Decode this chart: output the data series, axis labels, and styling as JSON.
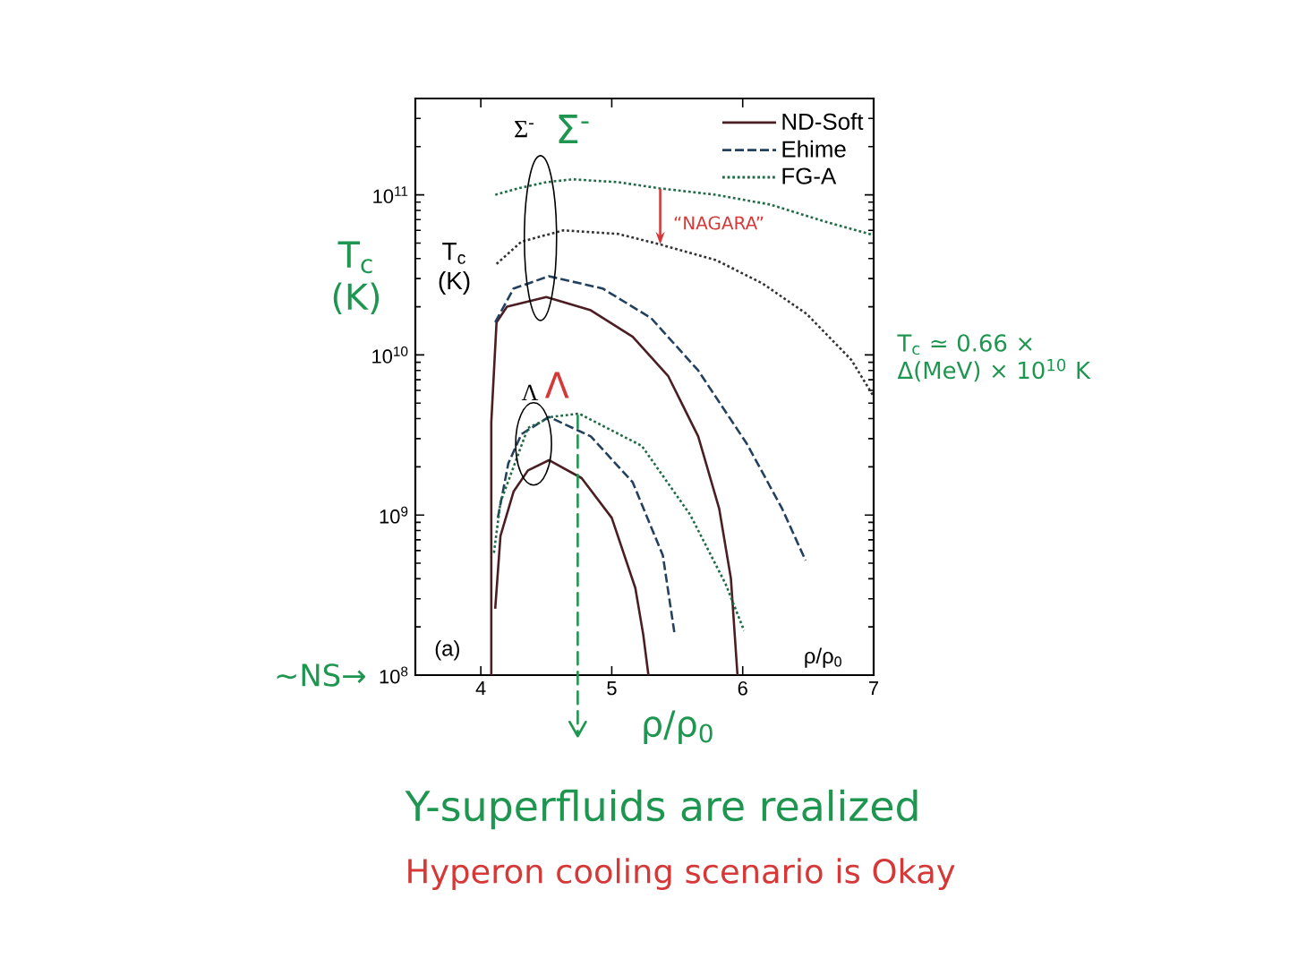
{
  "chart_data": {
    "type": "line",
    "xlabel": "ρ/ρ$_{0}$",
    "ylabel": "T$_{c}$ (K)",
    "xlim": [
      3.5,
      7
    ],
    "ylim": [
      100000000.0,
      400000000000.0
    ],
    "xticks": [
      4,
      5,
      6,
      7
    ],
    "yticks": [
      {
        "value": 100000000.0,
        "label": "10$^{8}$"
      },
      {
        "value": 1000000000.0,
        "label": "10$^{9}$"
      },
      {
        "value": 10000000000.0,
        "label": "10$^{10}$"
      },
      {
        "value": 100000000000.0,
        "label": "10$^{11}$"
      }
    ],
    "log": "y",
    "legend": "top right",
    "series": [
      {
        "name": "ND-Soft",
        "color": "#4a1e22",
        "line_style": "solid",
        "x": [
          4.08,
          4.08,
          4.12,
          4.2,
          4.5,
          4.84,
          5.16,
          5.43,
          5.66,
          5.82,
          5.91,
          5.96
        ],
        "values": [
          100000000.0,
          3800000000.0,
          16000000000.0,
          20000000000.0,
          23000000000.0,
          19000000000.0,
          13000000000.0,
          7400000000.0,
          3100000000.0,
          1100000000.0,
          400000000.0,
          100000000.0
        ]
      },
      {
        "name": "Ehime",
        "color": "#23405e",
        "line_style": "dashed",
        "x": [
          4.11,
          4.25,
          4.52,
          4.93,
          5.3,
          5.66,
          6.03,
          6.3,
          6.48
        ],
        "values": [
          16000000000.0,
          26000000000.0,
          31000000000.0,
          26000000000.0,
          17000000000.0,
          8000000000.0,
          2800000000.0,
          1100000000.0,
          520000000.0
        ]
      },
      {
        "name": "FG-A",
        "color": "#1f6b45",
        "line_style": "dotted",
        "x": [
          4.11,
          4.29,
          4.5,
          4.7,
          5.05,
          5.36,
          5.8,
          6.21,
          6.63,
          7.0
        ],
        "values": [
          100000000000.0,
          110000000000.0,
          120000000000.0,
          125000000000.0,
          120000000000.0,
          110000000000.0,
          100000000000.0,
          87000000000.0,
          68000000000.0,
          56000000000.0
        ]
      },
      {
        "color": "#333333",
        "line_style": "dotted",
        "x": [
          4.12,
          4.31,
          4.63,
          5.05,
          5.37,
          5.8,
          6.15,
          6.49,
          6.83,
          7.0
        ],
        "values": [
          37000000000.0,
          51000000000.0,
          60000000000.0,
          57000000000.0,
          49000000000.0,
          39000000000.0,
          28000000000.0,
          18000000000.0,
          9300000000.0,
          5500000000.0
        ]
      },
      {
        "color": "#4a1e22",
        "line_style": "solid",
        "x": [
          4.11,
          4.15,
          4.25,
          4.36,
          4.52,
          4.77,
          5.0,
          5.18,
          5.24,
          5.28
        ],
        "values": [
          260000000.0,
          740000000.0,
          1400000000.0,
          1900000000.0,
          2200000000.0,
          1700000000.0,
          960000000.0,
          350000000.0,
          180000000.0,
          100000000.0
        ]
      },
      {
        "color": "#23405e",
        "line_style": "dashed",
        "x": [
          4.13,
          4.21,
          4.31,
          4.52,
          4.84,
          5.16,
          5.39,
          5.48
        ],
        "values": [
          960000000.0,
          2100000000.0,
          3200000000.0,
          4100000000.0,
          3100000000.0,
          1600000000.0,
          560000000.0,
          180000000.0
        ]
      },
      {
        "color": "#1f6b45",
        "line_style": "dotted",
        "x": [
          4.1,
          4.15,
          4.36,
          4.54,
          4.75,
          5.23,
          5.6,
          5.87,
          6.01
        ],
        "values": [
          580000000.0,
          1200000000.0,
          3500000000.0,
          4100000000.0,
          4300000000.0,
          2700000000.0,
          1000000000.0,
          370000000.0,
          190000000.0
        ]
      }
    ],
    "ref_lines": [
      {
        "axis": "x",
        "value": 4.74,
        "label": "ρ/ρ$_{0}$",
        "color": "#1e9650",
        "line_style": "dashed"
      }
    ],
    "annotations": [
      "Σ$^{-}$",
      "Σ$^{-}$",
      "Λ",
      "Λ",
      {
        "text": "“NAGARA”",
        "x": 5.37,
        "y": 49000000000.0
      },
      "(a)",
      "T$_{c}$ (K)",
      "~NS→",
      "T$_{c}$ ≃ 0.66 × Δ(MeV) × 10$^{10}$ K",
      "Y-superfluids are realized",
      "Hyperon cooling scenario is Okay"
    ]
  }
}
